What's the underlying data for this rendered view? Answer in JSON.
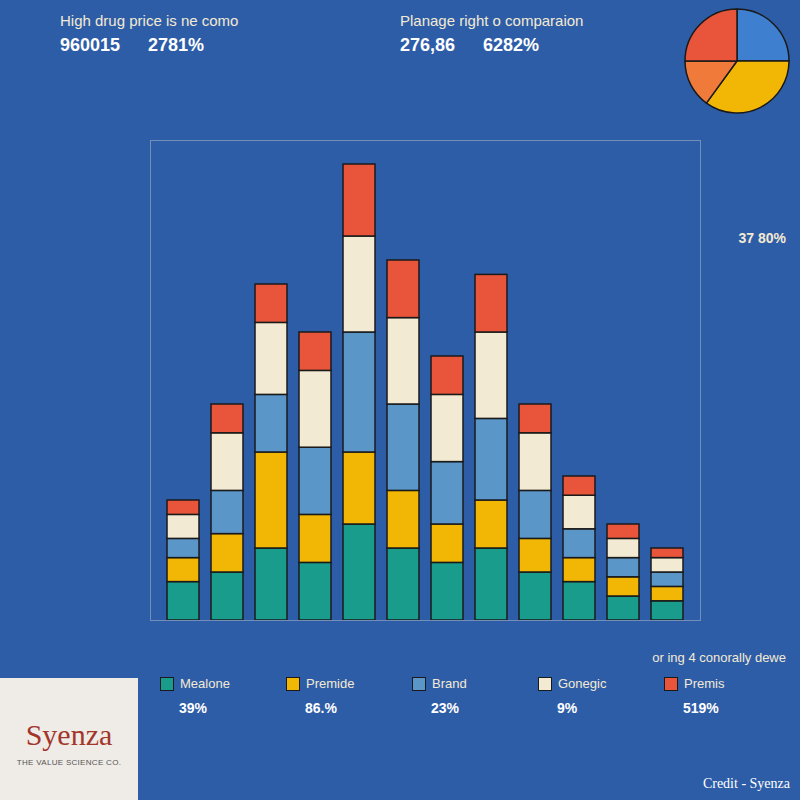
{
  "chart_data": [
    {
      "type": "bar",
      "stacked": true,
      "tick_labels": false,
      "grid": false,
      "legend": "bottom",
      "title_blocks": [
        {
          "title": "High drug price is ne como",
          "figures": [
            "960015",
            "2781%"
          ]
        },
        {
          "title": "Planage right o comparaion",
          "figures": [
            "276,86",
            "6282%"
          ]
        }
      ],
      "side_note": "37 80%",
      "footer_note": "or ing 4 conorally dewe",
      "footer_figures": [
        "39%",
        "86.%",
        "23%",
        "9%",
        "519%"
      ],
      "categories": [
        null,
        null,
        null,
        null,
        null,
        null,
        null,
        null,
        null,
        null,
        null,
        null
      ],
      "ylim": [
        0,
        100
      ],
      "series": [
        {
          "name": "Mealone",
          "color": "#1a9c8c",
          "values": [
            8,
            10,
            15,
            12,
            20,
            15,
            12,
            15,
            10,
            8,
            5,
            4
          ]
        },
        {
          "name": "Premide",
          "color": "#f2b705",
          "values": [
            5,
            8,
            20,
            10,
            15,
            12,
            8,
            10,
            7,
            5,
            4,
            3
          ]
        },
        {
          "name": "Brand",
          "color": "#5a96c8",
          "values": [
            4,
            9,
            12,
            14,
            25,
            18,
            13,
            17,
            10,
            6,
            4,
            3
          ]
        },
        {
          "name": "Gonegic",
          "color": "#f3ead3",
          "values": [
            5,
            12,
            15,
            16,
            20,
            18,
            14,
            18,
            12,
            7,
            4,
            3
          ]
        },
        {
          "name": "Premis",
          "color": "#e8553a",
          "values": [
            3,
            6,
            8,
            8,
            15,
            12,
            8,
            12,
            6,
            4,
            3,
            2
          ]
        }
      ]
    },
    {
      "type": "pie",
      "values": [
        25,
        35,
        15,
        25
      ],
      "colors": [
        "#3f7fd0",
        "#f2b705",
        "#f07a3a",
        "#e8553a"
      ]
    }
  ],
  "logo": {
    "name": "Syenza",
    "tagline": "THE VALUE SCIENCE CO."
  },
  "credit": "Credit - Syenza"
}
